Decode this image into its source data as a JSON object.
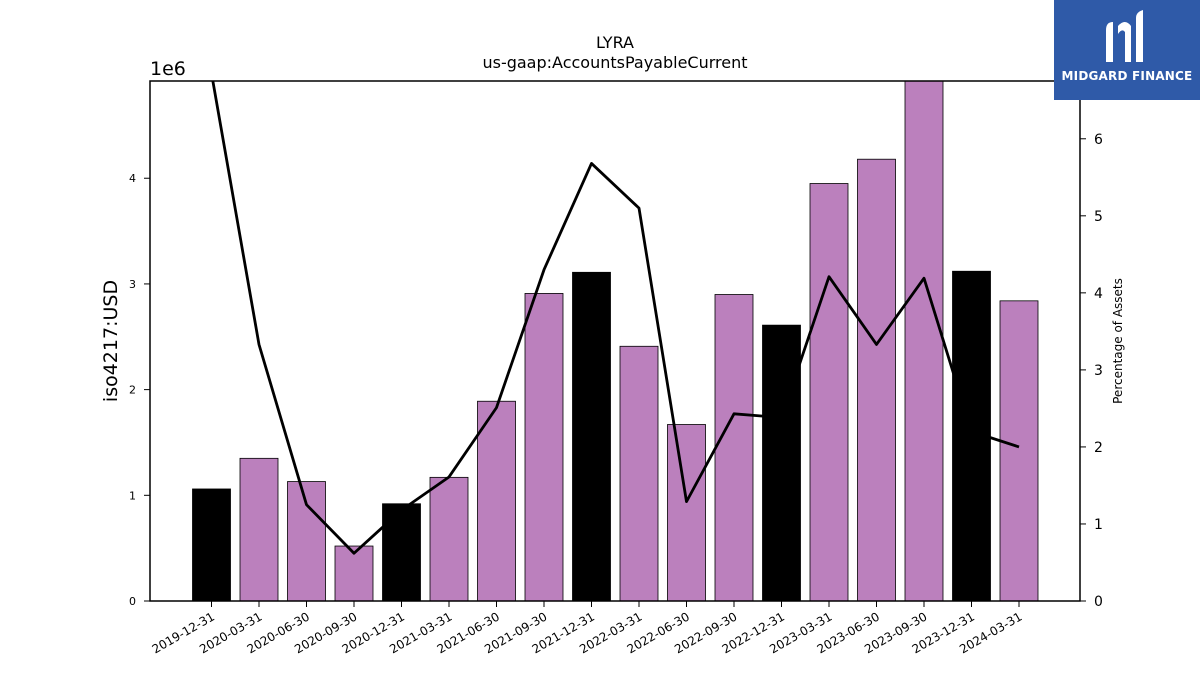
{
  "logo": {
    "text": "MIDGARD FINANCE",
    "icon": "midgard-mark-icon",
    "background": "#2f5aa8"
  },
  "chart_data": {
    "type": "bar",
    "title": "LYRA",
    "subtitle": "us-gaap:AccountsPayableCurrent",
    "ylabel": "iso4217:USD",
    "y2label": "Percentage of Assets",
    "y_offset_text": "1e6",
    "ylim": [
      0,
      4.92
    ],
    "y2lim": [
      0,
      6.75
    ],
    "yticks": [
      "0",
      "1",
      "2",
      "3",
      "4"
    ],
    "y2ticks": [
      "0",
      "1",
      "2",
      "3",
      "4",
      "5",
      "6"
    ],
    "categories": [
      "2019-12-31",
      "2020-03-31",
      "2020-06-30",
      "2020-09-30",
      "2020-12-31",
      "2021-03-31",
      "2021-06-30",
      "2021-09-30",
      "2021-12-31",
      "2022-03-31",
      "2022-06-30",
      "2022-09-30",
      "2022-12-31",
      "2023-03-31",
      "2023-06-30",
      "2023-09-30",
      "2023-12-31",
      "2024-03-31"
    ],
    "series": [
      {
        "type": "bar",
        "values": [
          1.06,
          1.35,
          1.13,
          0.52,
          0.92,
          1.17,
          1.89,
          2.91,
          3.11,
          2.41,
          1.67,
          2.9,
          2.61,
          3.95,
          4.18,
          4.92,
          3.12,
          2.84
        ]
      },
      {
        "type": "line",
        "axis": "right",
        "values": [
          6.85,
          3.33,
          1.25,
          0.62,
          1.18,
          1.61,
          2.51,
          4.3,
          5.68,
          5.1,
          1.29,
          2.43,
          2.38,
          4.21,
          3.33,
          4.19,
          2.2,
          2.0
        ]
      }
    ],
    "bar_colors": {
      "annual": "#000000",
      "quarterly": "#bb80bd"
    },
    "bar_kind": [
      "annual",
      "quarterly",
      "quarterly",
      "quarterly",
      "annual",
      "quarterly",
      "quarterly",
      "quarterly",
      "annual",
      "quarterly",
      "quarterly",
      "quarterly",
      "annual",
      "quarterly",
      "quarterly",
      "quarterly",
      "annual",
      "quarterly"
    ],
    "line_color": "#000000",
    "grid": false
  }
}
